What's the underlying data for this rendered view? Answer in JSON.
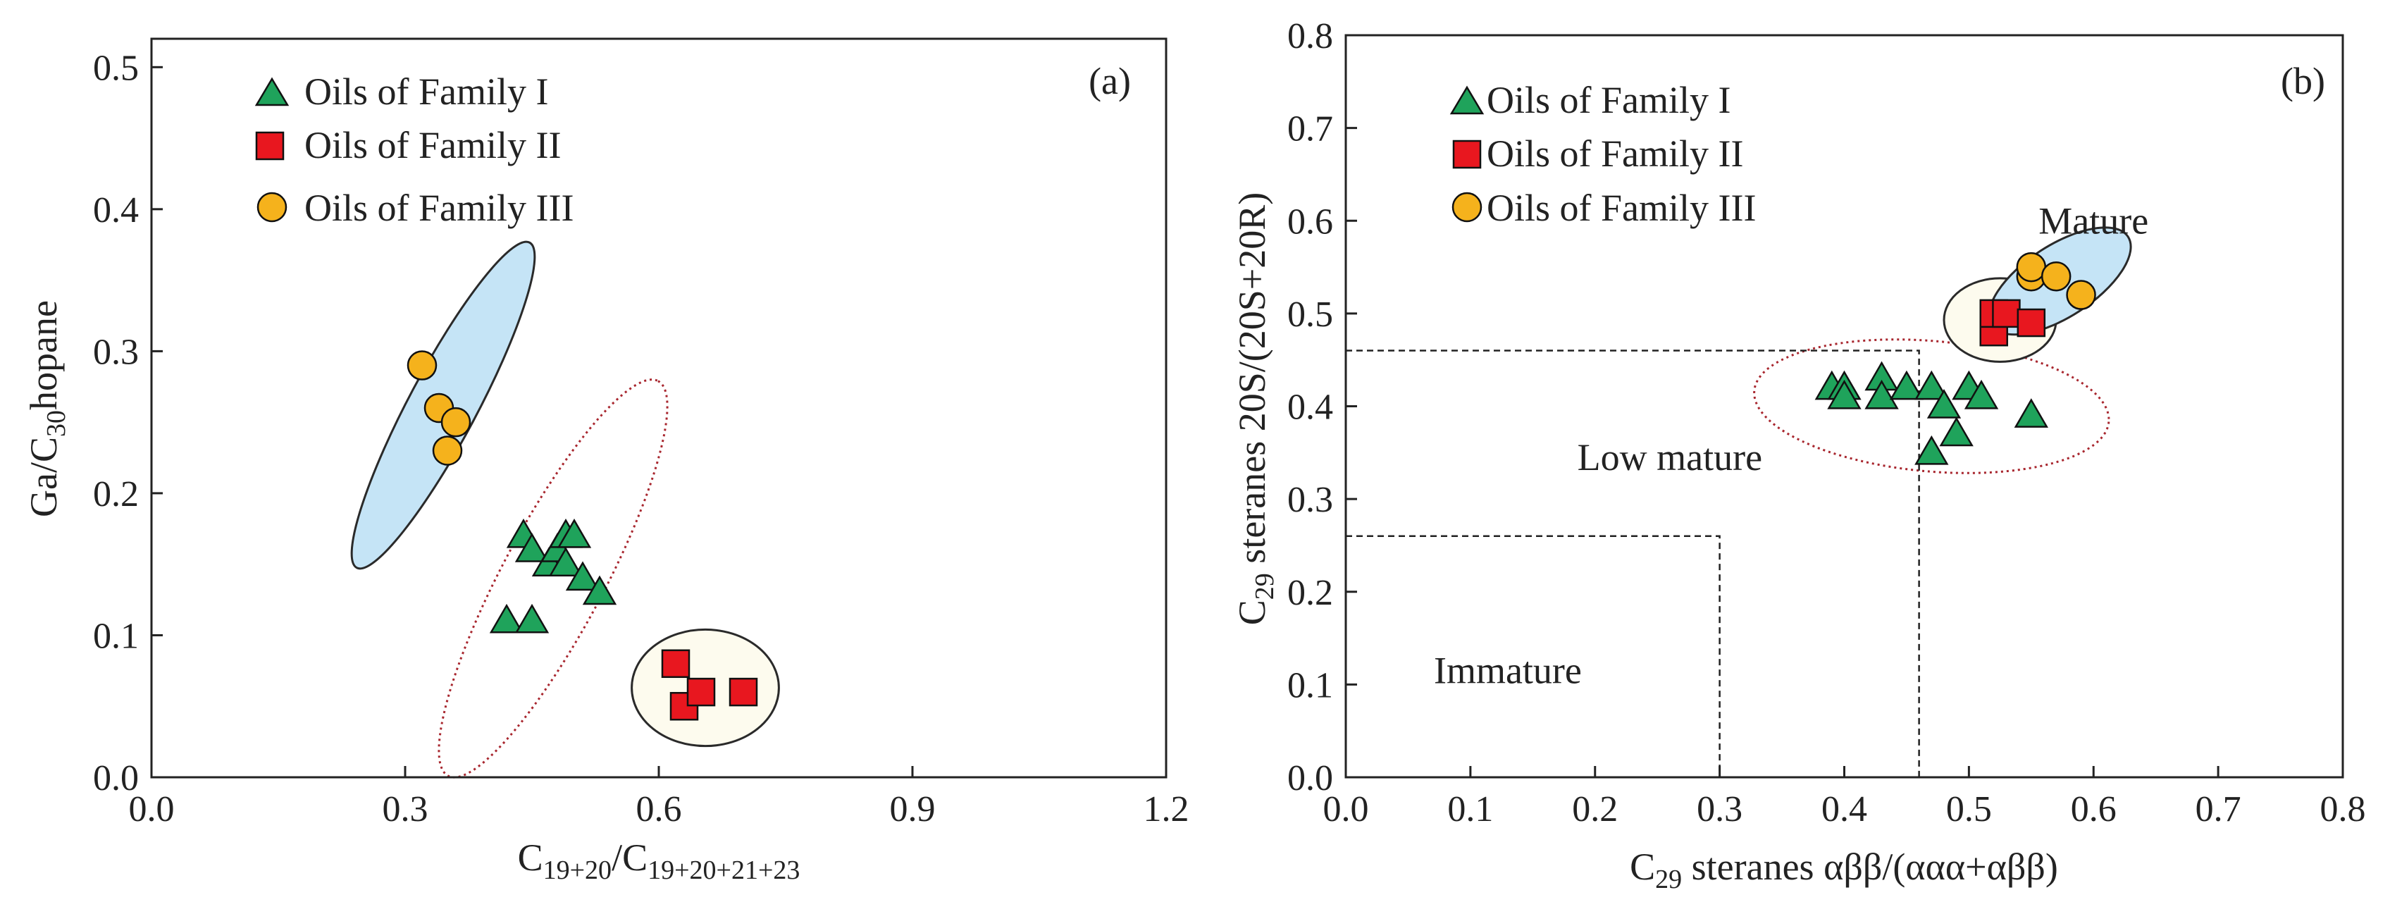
{
  "chart_data": [
    {
      "type": "scatter",
      "panel_label": "(a)",
      "xlabel": {
        "main": "C",
        "sub": "19+20",
        "sep": "/C",
        "sub2": "19+20+21+23"
      },
      "ylabel": {
        "pre": "Ga/C",
        "sub": "30",
        "post": "hopane"
      },
      "xlim": [
        0.0,
        1.2
      ],
      "ylim": [
        0.0,
        0.52
      ],
      "xticks": [
        "0.0",
        "0.3",
        "0.6",
        "0.9",
        "1.2"
      ],
      "yticks": [
        "0.0",
        "0.1",
        "0.2",
        "0.3",
        "0.4",
        "0.5"
      ],
      "legend": [
        {
          "label": "Oils of Family I",
          "marker": "triangle"
        },
        {
          "label": "Oils of Family II",
          "marker": "square"
        },
        {
          "label": "Oils of Family III",
          "marker": "circle"
        }
      ],
      "series": [
        {
          "name": "Oils of Family I",
          "marker": "triangle",
          "color": "#1fa35b",
          "points": [
            [
              0.44,
              0.17
            ],
            [
              0.45,
              0.16
            ],
            [
              0.47,
              0.15
            ],
            [
              0.48,
              0.16
            ],
            [
              0.49,
              0.17
            ],
            [
              0.5,
              0.17
            ],
            [
              0.49,
              0.15
            ],
            [
              0.51,
              0.14
            ],
            [
              0.53,
              0.13
            ],
            [
              0.42,
              0.11
            ],
            [
              0.45,
              0.11
            ]
          ]
        },
        {
          "name": "Oils of Family II",
          "marker": "square",
          "color": "#e8171f",
          "points": [
            [
              0.62,
              0.08
            ],
            [
              0.63,
              0.05
            ],
            [
              0.65,
              0.06
            ],
            [
              0.7,
              0.06
            ]
          ]
        },
        {
          "name": "Oils of Family III",
          "marker": "circle",
          "color": "#f5b21c",
          "points": [
            [
              0.32,
              0.29
            ],
            [
              0.34,
              0.26
            ],
            [
              0.36,
              0.25
            ],
            [
              0.35,
              0.23
            ]
          ]
        }
      ],
      "groups": [
        {
          "name": "Family III ellipse",
          "style": "filled-blue",
          "cx": 0.345,
          "cy": 0.262,
          "rx": 0.14,
          "ry": 0.03,
          "angle": -62
        },
        {
          "name": "Family I ellipse",
          "style": "dotted-red",
          "cx": 0.475,
          "cy": 0.14,
          "rx": 0.17,
          "ry": 0.045,
          "angle": -62
        },
        {
          "name": "Family II ellipse",
          "style": "filled-cream",
          "cx": 0.655,
          "cy": 0.063,
          "rx": 0.087,
          "ry": 0.041,
          "angle": 0
        }
      ]
    },
    {
      "type": "scatter",
      "panel_label": "(b)",
      "xlabel": {
        "main": "C",
        "sub": "29",
        "post": " steranes αββ/(ααα+αββ)"
      },
      "ylabel": {
        "main": "C",
        "sub": "29",
        "post": " steranes 20S/(20S+20R)"
      },
      "xlim": [
        0.0,
        0.8
      ],
      "ylim": [
        0.0,
        0.8
      ],
      "xticks": [
        "0.0",
        "0.1",
        "0.2",
        "0.3",
        "0.4",
        "0.5",
        "0.6",
        "0.7",
        "0.8"
      ],
      "yticks": [
        "0.0",
        "0.1",
        "0.2",
        "0.3",
        "0.4",
        "0.5",
        "0.6",
        "0.7",
        "0.8"
      ],
      "legend": [
        {
          "label": "Oils of Family I",
          "marker": "triangle"
        },
        {
          "label": "Oils of Family II",
          "marker": "square"
        },
        {
          "label": "Oils of Family III",
          "marker": "circle"
        }
      ],
      "regions": [
        {
          "label": "Mature",
          "x": 0.6,
          "y": 0.6
        },
        {
          "label": "Low mature",
          "x": 0.26,
          "y": 0.345
        },
        {
          "label": "Immature",
          "x": 0.13,
          "y": 0.115
        }
      ],
      "boundaries": [
        {
          "name": "immature-boundary",
          "x": 0.3,
          "y": 0.26
        },
        {
          "name": "low-mature-boundary",
          "x": 0.46,
          "y": 0.46
        }
      ],
      "series": [
        {
          "name": "Oils of Family I",
          "marker": "triangle",
          "color": "#1fa35b",
          "points": [
            [
              0.39,
              0.42
            ],
            [
              0.4,
              0.42
            ],
            [
              0.4,
              0.41
            ],
            [
              0.43,
              0.43
            ],
            [
              0.43,
              0.41
            ],
            [
              0.45,
              0.42
            ],
            [
              0.47,
              0.42
            ],
            [
              0.48,
              0.4
            ],
            [
              0.5,
              0.42
            ],
            [
              0.51,
              0.41
            ],
            [
              0.49,
              0.37
            ],
            [
              0.47,
              0.35
            ],
            [
              0.55,
              0.39
            ]
          ]
        },
        {
          "name": "Oils of Family II",
          "marker": "square",
          "color": "#e8171f",
          "points": [
            [
              0.52,
              0.48
            ],
            [
              0.52,
              0.5
            ],
            [
              0.53,
              0.5
            ],
            [
              0.55,
              0.49
            ]
          ]
        },
        {
          "name": "Oils of Family III",
          "marker": "circle",
          "color": "#f5b21c",
          "points": [
            [
              0.55,
              0.54
            ],
            [
              0.55,
              0.55
            ],
            [
              0.57,
              0.54
            ],
            [
              0.59,
              0.52
            ]
          ]
        }
      ],
      "groups": [
        {
          "name": "Family I ellipse",
          "style": "dotted-red",
          "cx": 0.47,
          "cy": 0.4,
          "rx": 0.143,
          "ry": 0.06,
          "angle": 5
        },
        {
          "name": "Family II ellipse",
          "style": "filled-cream",
          "cx": 0.525,
          "cy": 0.493,
          "rx": 0.045,
          "ry": 0.045,
          "angle": 0
        },
        {
          "name": "Family III ellipse",
          "style": "filled-blue",
          "cx": 0.573,
          "cy": 0.535,
          "rx": 0.07,
          "ry": 0.033,
          "angle": -33
        }
      ]
    }
  ],
  "colors": {
    "ellipse_blue_fill": "#c5e4f6",
    "ellipse_cream_fill": "#fdfbee",
    "ellipse_stroke": "#2a2a2a",
    "dotted_ring": "#a8262e",
    "marker_stroke": "#111111"
  }
}
